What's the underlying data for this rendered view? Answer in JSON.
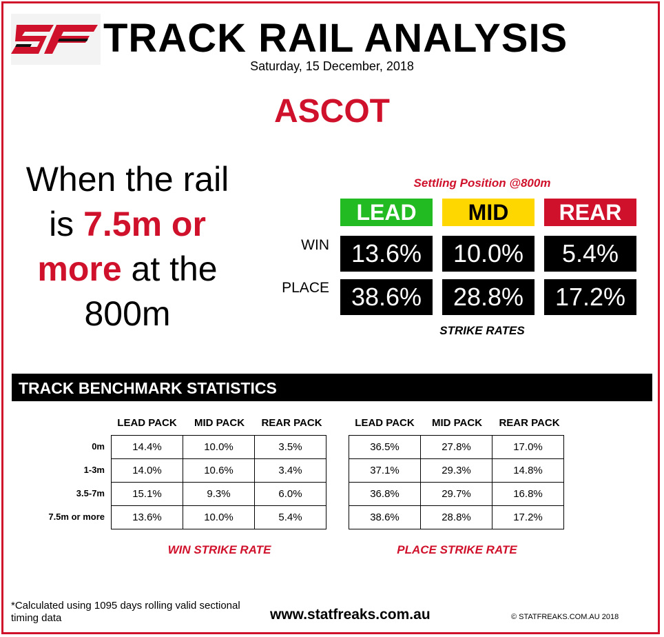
{
  "header": {
    "title": "TRACK RAIL ANALYSIS",
    "date": "Saturday, 15 December, 2018",
    "venue": "ASCOT",
    "brand_color": "#d0112b"
  },
  "headline": {
    "part1": "When the rail is ",
    "highlight1": "7.5m or more",
    "part2": " at the 800m"
  },
  "summary": {
    "caption": "Settling Position @800m",
    "columns": [
      "LEAD",
      "MID",
      "REAR"
    ],
    "column_colors": [
      "#22bb22",
      "#ffd700",
      "#d0112b"
    ],
    "rows": [
      {
        "label": "WIN",
        "values": [
          "13.6%",
          "10.0%",
          "5.4%"
        ]
      },
      {
        "label": "PLACE",
        "values": [
          "38.6%",
          "28.8%",
          "17.2%"
        ]
      }
    ],
    "footer": "STRIKE RATES"
  },
  "benchmark": {
    "title": "TRACK BENCHMARK STATISTICS",
    "columns": [
      "LEAD PACK",
      "MID PACK",
      "REAR PACK"
    ],
    "row_labels": [
      "0m",
      "1-3m",
      "3.5-7m",
      "7.5m or more"
    ],
    "win": {
      "caption": "WIN STRIKE RATE",
      "rows": [
        [
          "14.4%",
          "10.0%",
          "3.5%"
        ],
        [
          "14.0%",
          "10.6%",
          "3.4%"
        ],
        [
          "15.1%",
          "9.3%",
          "6.0%"
        ],
        [
          "13.6%",
          "10.0%",
          "5.4%"
        ]
      ]
    },
    "place": {
      "caption": "PLACE STRIKE RATE",
      "rows": [
        [
          "36.5%",
          "27.8%",
          "17.0%"
        ],
        [
          "37.1%",
          "29.3%",
          "14.8%"
        ],
        [
          "36.8%",
          "29.7%",
          "16.8%"
        ],
        [
          "38.6%",
          "28.8%",
          "17.2%"
        ]
      ]
    }
  },
  "footer": {
    "note": "*Calculated using 1095 days rolling valid sectional timing data",
    "url": "www.statfreaks.com.au",
    "copyright": "© STATFREAKS.COM.AU 2018"
  },
  "icons": {
    "logo": "statfreaks-sf-logo"
  }
}
